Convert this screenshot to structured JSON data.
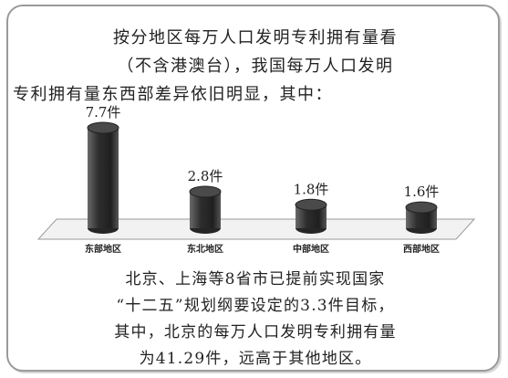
{
  "intro_lines": [
    "按分地区每万人口发明专利拥有量看",
    "（不含港澳台），我国每万人口发明",
    "专利拥有量东西部差异依旧明显，其中："
  ],
  "chart_data": {
    "type": "bar",
    "title": "",
    "xlabel": "",
    "ylabel": "",
    "unit": "件",
    "categories": [
      "东部地区",
      "东北地区",
      "中部地区",
      "西部地区"
    ],
    "values": [
      7.7,
      2.8,
      1.8,
      1.6
    ],
    "value_labels": [
      "7.7件",
      "2.8件",
      "1.8件",
      "1.6件"
    ],
    "ylim": [
      0,
      8
    ],
    "grid": false,
    "bar_color": "#3a3a3a"
  },
  "outro_lines": [
    "北京、上海等8省市已提前实现国家",
    "“十二五”规划纲要设定的3.3件目标，",
    "其中，北京的每万人口发明专利拥有量",
    "为41.29件，远高于其他地区。"
  ]
}
